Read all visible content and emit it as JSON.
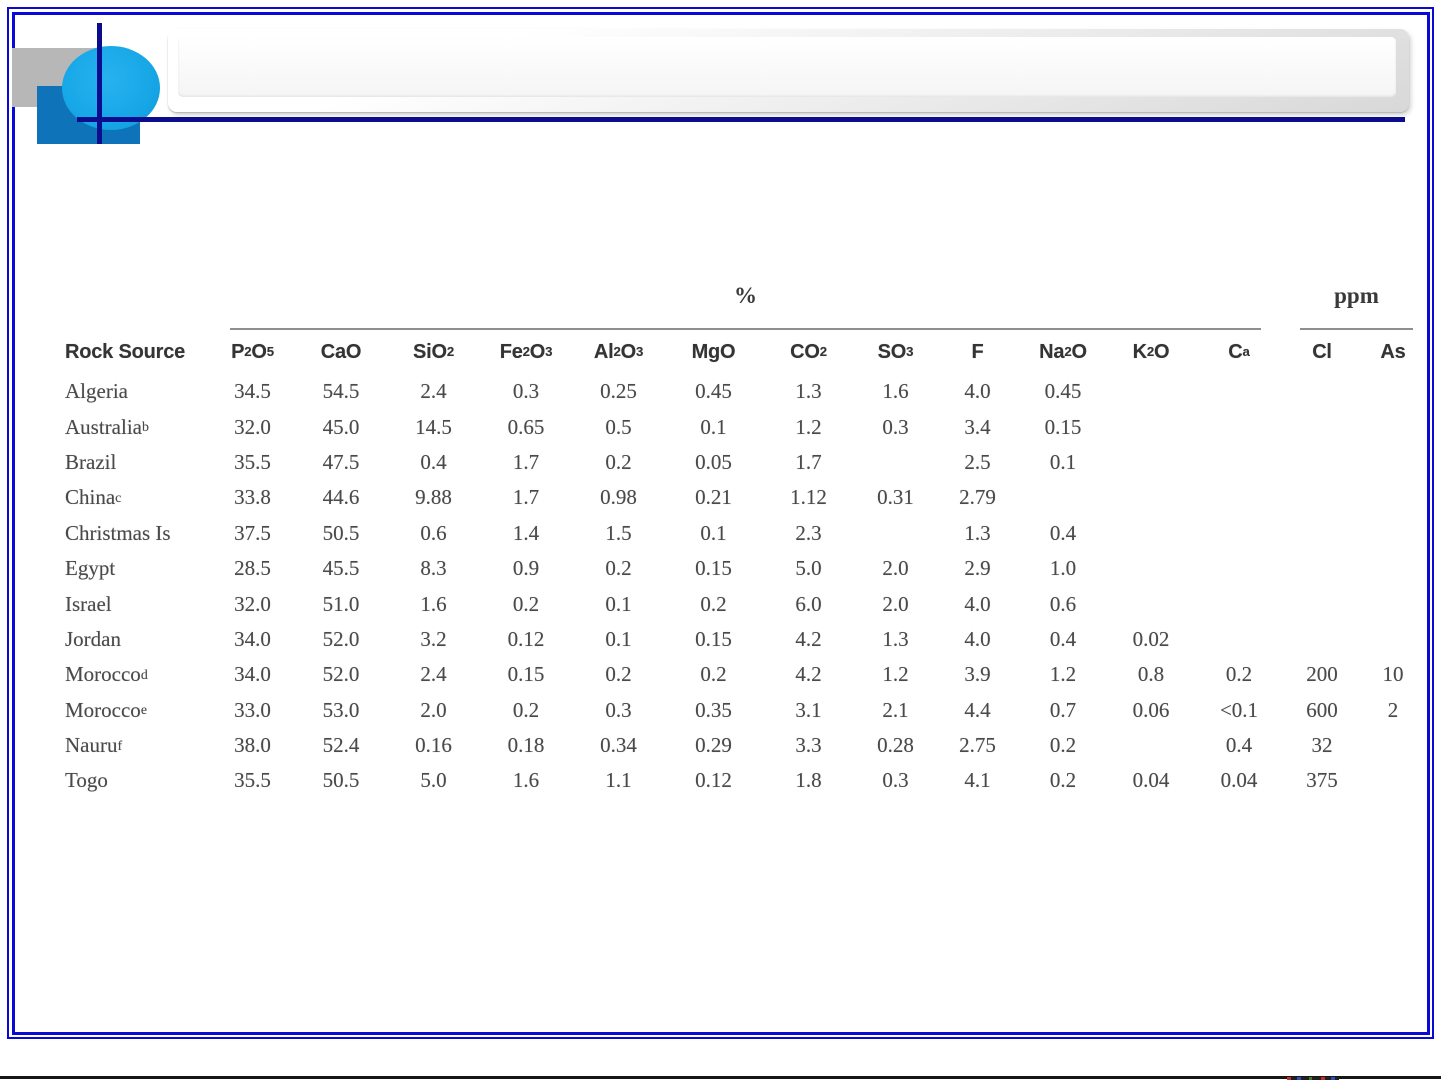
{
  "slide": {
    "title_text": ""
  },
  "colors": {
    "border_blue": "#0909d6",
    "navy_accent": "#0c0c8e",
    "light_blue_ellipse": "#17a7e6",
    "medium_blue_rect": "#0e73b8",
    "gray_rect": "#b7b7b7",
    "table_rule_gray": "#8f8f8f",
    "table_text": "#4a4a4a"
  },
  "table": {
    "group_percent_label": "%",
    "group_ppm_label": "ppm",
    "columns": [
      "Rock Source",
      "P_2O_5",
      "CaO",
      "SiO_2",
      "Fe_2O_3",
      "Al_2O_3",
      "MgO",
      "CO_2",
      "SO_3",
      "F",
      "Na_2O",
      "K_2O",
      "C^a",
      "Cl",
      "As"
    ],
    "percent_column_span": [
      "P_2O_5",
      "C^a"
    ],
    "ppm_column_span": [
      "Cl",
      "As"
    ],
    "rows": [
      {
        "source": "Algeria",
        "values": [
          "34.5",
          "54.5",
          "2.4",
          "0.3",
          "0.25",
          "0.45",
          "1.3",
          "1.6",
          "4.0",
          "0.45",
          "",
          "",
          "",
          ""
        ]
      },
      {
        "source": "Australia^b",
        "values": [
          "32.0",
          "45.0",
          "14.5",
          "0.65",
          "0.5",
          "0.1",
          "1.2",
          "0.3",
          "3.4",
          "0.15",
          "",
          "",
          "",
          ""
        ]
      },
      {
        "source": "Brazil",
        "values": [
          "35.5",
          "47.5",
          "0.4",
          "1.7",
          "0.2",
          "0.05",
          "1.7",
          "",
          "2.5",
          "0.1",
          "",
          "",
          "",
          ""
        ]
      },
      {
        "source": "China^c",
        "values": [
          "33.8",
          "44.6",
          "9.88",
          "1.7",
          "0.98",
          "0.21",
          "1.12",
          "0.31",
          "2.79",
          "",
          "",
          "",
          "",
          ""
        ]
      },
      {
        "source": "Christmas Is",
        "values": [
          "37.5",
          "50.5",
          "0.6",
          "1.4",
          "1.5",
          "0.1",
          "2.3",
          "",
          "1.3",
          "0.4",
          "",
          "",
          "",
          ""
        ]
      },
      {
        "source": "Egypt",
        "values": [
          "28.5",
          "45.5",
          "8.3",
          "0.9",
          "0.2",
          "0.15",
          "5.0",
          "2.0",
          "2.9",
          "1.0",
          "",
          "",
          "",
          ""
        ]
      },
      {
        "source": "Israel",
        "values": [
          "32.0",
          "51.0",
          "1.6",
          "0.2",
          "0.1",
          "0.2",
          "6.0",
          "2.0",
          "4.0",
          "0.6",
          "",
          "",
          "",
          ""
        ]
      },
      {
        "source": "Jordan",
        "values": [
          "34.0",
          "52.0",
          "3.2",
          "0.12",
          "0.1",
          "0.15",
          "4.2",
          "1.3",
          "4.0",
          "0.4",
          "0.02",
          "",
          "",
          ""
        ]
      },
      {
        "source": "Morocco^d",
        "values": [
          "34.0",
          "52.0",
          "2.4",
          "0.15",
          "0.2",
          "0.2",
          "4.2",
          "1.2",
          "3.9",
          "1.2",
          "0.8",
          "0.2",
          "200",
          "10"
        ]
      },
      {
        "source": "Morocco^e",
        "values": [
          "33.0",
          "53.0",
          "2.0",
          "0.2",
          "0.3",
          "0.35",
          "3.1",
          "2.1",
          "4.4",
          "0.7",
          "0.06",
          "<0.1",
          "600",
          "2"
        ]
      },
      {
        "source": "Nauru^f",
        "values": [
          "38.0",
          "52.4",
          "0.16",
          "0.18",
          "0.34",
          "0.29",
          "3.3",
          "0.28",
          "2.75",
          "0.2",
          "",
          "0.4",
          "32",
          ""
        ]
      },
      {
        "source": "Togo",
        "values": [
          "35.5",
          "50.5",
          "5.0",
          "1.6",
          "1.1",
          "0.12",
          "1.8",
          "0.3",
          "4.1",
          "0.2",
          "0.04",
          "0.04",
          "375",
          ""
        ]
      }
    ]
  }
}
